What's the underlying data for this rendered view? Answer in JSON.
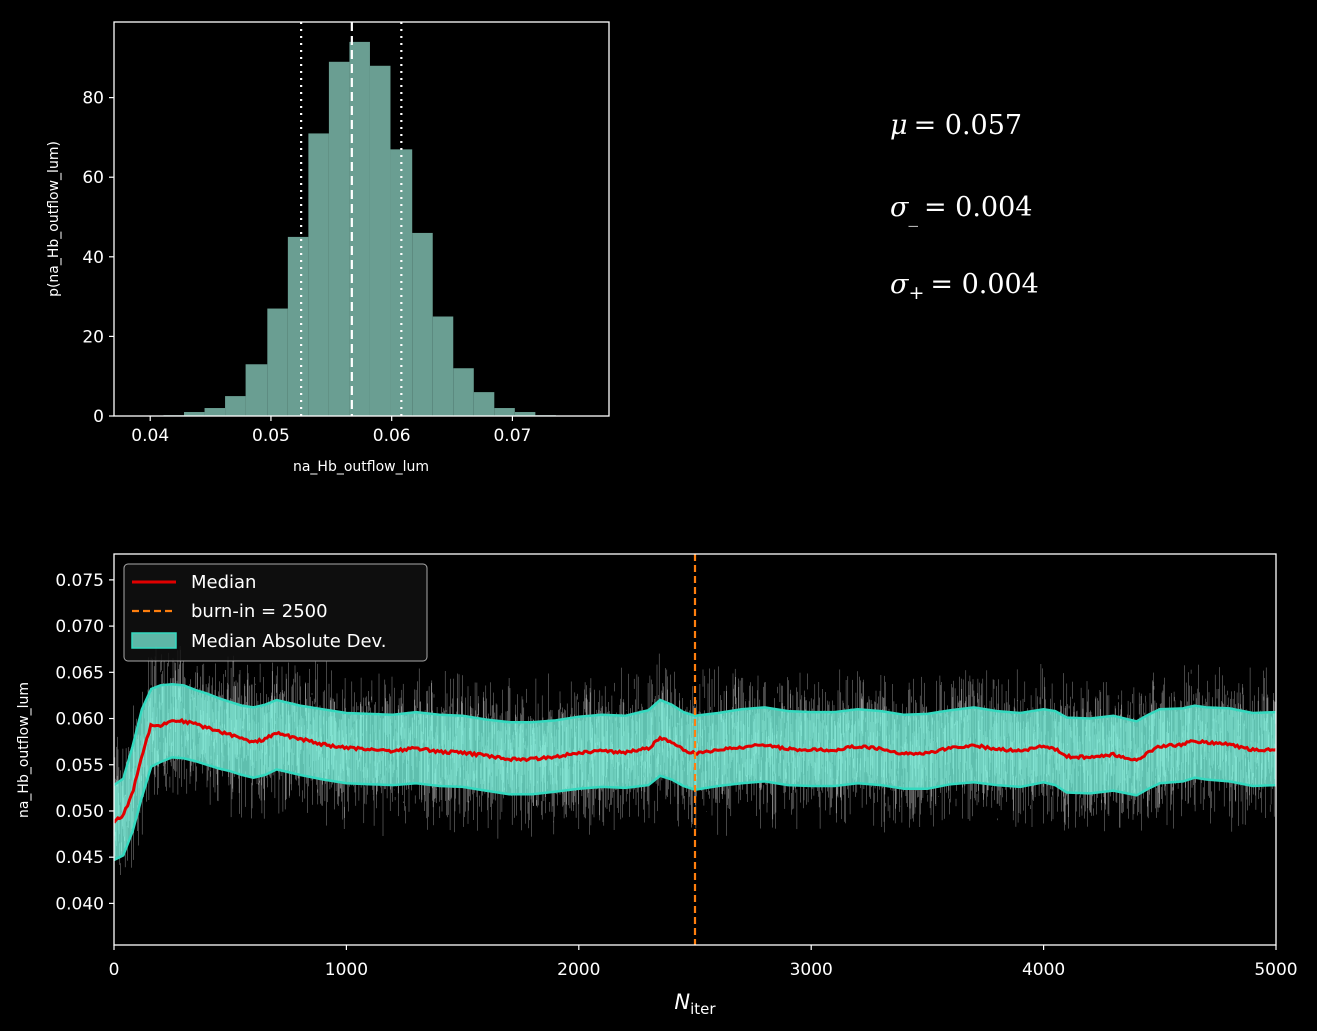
{
  "chart_data": [
    {
      "type": "bar",
      "xlabel": "na_Hb_outflow_lum",
      "ylabel": "p(na_Hb_outflow_lum)",
      "xlim": [
        0.037,
        0.078
      ],
      "ylim": [
        0,
        99
      ],
      "xticks": [
        "0.04",
        "0.05",
        "0.06",
        "0.07"
      ],
      "yticks": [
        "0",
        "20",
        "40",
        "60",
        "80"
      ],
      "bin_edges": [
        0.0394,
        0.0411,
        0.0428,
        0.0445,
        0.0462,
        0.0479,
        0.0497,
        0.0514,
        0.0531,
        0.0548,
        0.0565,
        0.0582,
        0.0599,
        0.0617,
        0.0634,
        0.0651,
        0.0668,
        0.0685,
        0.0702,
        0.0719,
        0.0736,
        0.0753
      ],
      "values": [
        0.1,
        0.2,
        1,
        2,
        5,
        13,
        27,
        45,
        71,
        89,
        94,
        88,
        67,
        46,
        25,
        12,
        6,
        2,
        1,
        0.2,
        0.1
      ],
      "bar_color": "#6a9e92",
      "median": 0.0567,
      "lower": 0.0525,
      "upper": 0.0608,
      "grid": false
    },
    {
      "type": "line",
      "xlabel_main": "N",
      "xlabel_sub": "iter",
      "ylabel": "na_Hb_outflow_lum",
      "xlim": [
        0,
        5000
      ],
      "ylim": [
        0.0355,
        0.0778
      ],
      "xticks": [
        "0",
        "1000",
        "2000",
        "3000",
        "4000",
        "5000"
      ],
      "yticks": [
        "0.040",
        "0.045",
        "0.050",
        "0.055",
        "0.060",
        "0.065",
        "0.070",
        "0.075"
      ],
      "burn_in": 2500,
      "median_series": {
        "x": [
          0,
          40,
          80,
          120,
          160,
          200,
          250,
          300,
          350,
          400,
          450,
          500,
          550,
          600,
          650,
          700,
          750,
          800,
          900,
          1000,
          1100,
          1200,
          1300,
          1400,
          1500,
          1600,
          1700,
          1800,
          1900,
          2000,
          2100,
          2200,
          2300,
          2350,
          2400,
          2450,
          2500,
          2600,
          2700,
          2800,
          2900,
          3000,
          3100,
          3200,
          3300,
          3400,
          3500,
          3600,
          3700,
          3800,
          3900,
          4000,
          4050,
          4100,
          4200,
          4300,
          4400,
          4450,
          4500,
          4600,
          4650,
          4700,
          4800,
          4900,
          5000
        ],
        "y": [
          0.0489,
          0.0495,
          0.052,
          0.056,
          0.0594,
          0.0592,
          0.0598,
          0.0597,
          0.0594,
          0.059,
          0.0586,
          0.0583,
          0.0578,
          0.0574,
          0.0578,
          0.0584,
          0.0581,
          0.0578,
          0.0572,
          0.0568,
          0.0567,
          0.0565,
          0.0568,
          0.0564,
          0.0563,
          0.056,
          0.0556,
          0.0556,
          0.0559,
          0.0563,
          0.0565,
          0.0563,
          0.0568,
          0.0579,
          0.0574,
          0.0566,
          0.0562,
          0.0566,
          0.0569,
          0.0572,
          0.0567,
          0.0566,
          0.0566,
          0.057,
          0.0567,
          0.0562,
          0.0563,
          0.0568,
          0.0571,
          0.0567,
          0.0565,
          0.057,
          0.0567,
          0.0559,
          0.0558,
          0.0561,
          0.0555,
          0.0563,
          0.057,
          0.0572,
          0.0576,
          0.0574,
          0.0572,
          0.0566,
          0.0567
        ]
      },
      "mad_upper": [
        0.0528,
        0.0535,
        0.057,
        0.061,
        0.0632,
        0.0636,
        0.0637,
        0.0636,
        0.0631,
        0.0627,
        0.0622,
        0.0618,
        0.0614,
        0.0612,
        0.0615,
        0.062,
        0.0617,
        0.0614,
        0.061,
        0.0606,
        0.0605,
        0.0604,
        0.0607,
        0.0604,
        0.0603,
        0.0599,
        0.0596,
        0.0596,
        0.0598,
        0.0602,
        0.0604,
        0.0603,
        0.0609,
        0.062,
        0.0615,
        0.0607,
        0.0603,
        0.0606,
        0.061,
        0.0612,
        0.0608,
        0.0607,
        0.0607,
        0.061,
        0.0608,
        0.0604,
        0.0605,
        0.0609,
        0.0612,
        0.0608,
        0.0606,
        0.061,
        0.0608,
        0.0601,
        0.06,
        0.0603,
        0.0597,
        0.0604,
        0.061,
        0.0611,
        0.0614,
        0.0612,
        0.0611,
        0.0606,
        0.0607
      ],
      "mad_lower": [
        0.0447,
        0.0452,
        0.0478,
        0.0515,
        0.0548,
        0.0553,
        0.0558,
        0.0557,
        0.0554,
        0.055,
        0.0546,
        0.0543,
        0.0539,
        0.0536,
        0.0539,
        0.0545,
        0.0542,
        0.0539,
        0.0534,
        0.053,
        0.0529,
        0.0528,
        0.053,
        0.0527,
        0.0526,
        0.0522,
        0.0518,
        0.0518,
        0.0521,
        0.0524,
        0.0526,
        0.0525,
        0.0528,
        0.0538,
        0.0534,
        0.0527,
        0.0523,
        0.0527,
        0.053,
        0.0532,
        0.0528,
        0.0527,
        0.0527,
        0.053,
        0.0528,
        0.0524,
        0.0524,
        0.0529,
        0.0531,
        0.0528,
        0.0526,
        0.0531,
        0.0528,
        0.052,
        0.0519,
        0.0522,
        0.0517,
        0.0524,
        0.053,
        0.0532,
        0.0536,
        0.0534,
        0.0532,
        0.0527,
        0.0528
      ],
      "trace_halfwidth": 0.0095,
      "colors": {
        "median": "#e00000",
        "burn_in": "#ff7f0e",
        "band": "#7fffe8",
        "band_edge": "#33d9bf",
        "trace": "#ffffff"
      },
      "legend": {
        "position": "upper-left",
        "items": [
          {
            "label": "Median",
            "kind": "line"
          },
          {
            "label": "burn-in = 2500",
            "kind": "dash"
          },
          {
            "label": "Median Absolute Dev.",
            "kind": "patch"
          }
        ]
      },
      "grid": false
    }
  ],
  "stats": {
    "mu": {
      "symbol": "μ",
      "value": "= 0.057"
    },
    "sigma_minus": {
      "symbol": "σ",
      "sub": "_",
      "value": "= 0.004"
    },
    "sigma_plus": {
      "symbol": "σ",
      "sub": "+",
      "value": "= 0.004"
    }
  }
}
